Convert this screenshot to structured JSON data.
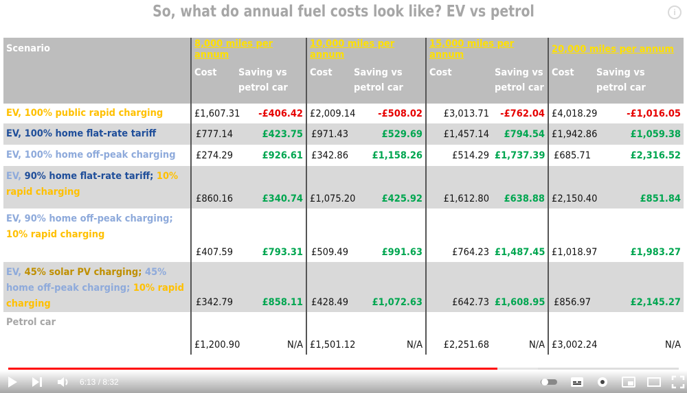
{
  "title": "So, what do annual fuel costs look like? EV vs petrol",
  "table": {
    "scenario_header": "Scenario",
    "groups": [
      "8,000 miles per annum",
      "10,000 miles per annum",
      "15,000 miles per annum",
      "20,000 miles per annum"
    ],
    "cost_label": "Cost",
    "saving_label_line1": "Saving vs",
    "saving_label_line2": "petrol car",
    "rows": [
      {
        "scenario": [
          {
            "text": "EV, 100% public rapid charging",
            "color": "rapid"
          }
        ],
        "values": [
          "£1,607.31",
          "-£406.42",
          "£2,009.14",
          "-£508.02",
          "£3,013.71",
          "-£762.04",
          "£4,018.29",
          "-£1,016.05"
        ]
      },
      {
        "scenario": [
          {
            "text": "EV, 100% home flat-rate tariff",
            "color": "flat"
          }
        ],
        "values": [
          "£777.14",
          "£423.75",
          "£971.43",
          "£529.69",
          "£1,457.14",
          "£794.54",
          "£1,942.86",
          "£1,059.38"
        ]
      },
      {
        "scenario": [
          {
            "text": "EV, 100% home off-peak charging",
            "color": "off"
          }
        ],
        "values": [
          "£274.29",
          "£926.61",
          "£342.86",
          "£1,158.26",
          "£514.29",
          "£1,737.39",
          "£685.71",
          "£2,316.52"
        ]
      },
      {
        "scenario": [
          {
            "text": "EV, ",
            "color": "ev"
          },
          {
            "text": "90% home flat-rate tariff; ",
            "color": "flat"
          },
          {
            "text": "10% rapid charging",
            "color": "rapid"
          }
        ],
        "values": [
          "£860.16",
          "£340.74",
          "£1,075.20",
          "£425.92",
          "£1,612.80",
          "£638.88",
          "£2,150.40",
          "£851.84"
        ]
      },
      {
        "scenario": [
          {
            "text": "EV, 90% home off-peak charging; ",
            "color": "off"
          },
          {
            "text": "10% rapid charging",
            "color": "rapid"
          }
        ],
        "values": [
          "£407.59",
          "£793.31",
          "£509.49",
          "£991.63",
          "£764.23",
          "£1,487.45",
          "£1,018.97",
          "£1,983.27"
        ]
      },
      {
        "scenario": [
          {
            "text": "EV, ",
            "color": "ev"
          },
          {
            "text": "45% solar PV charging; ",
            "color": "solar"
          },
          {
            "text": "45% home off-peak charging; ",
            "color": "off"
          },
          {
            "text": "10% rapid charging",
            "color": "rapid"
          }
        ],
        "values": [
          "£342.79",
          "£858.11",
          "£428.49",
          "£1,072.63",
          "£642.73",
          "£1,608.95",
          "£856.97",
          "£2,145.27"
        ]
      },
      {
        "scenario": [
          {
            "text": "Petrol car",
            "color": "petrol"
          }
        ],
        "values": [
          "£1,200.90",
          "N/A",
          "£1,501.12",
          "N/A",
          "£2,251.68",
          "N/A",
          "£3,002.24",
          "N/A"
        ]
      }
    ]
  },
  "player": {
    "time_display": "6:13 / 8:32",
    "progress": 0.729,
    "buffered": 0.79,
    "icons": [
      "play-icon",
      "next-icon",
      "volume-icon",
      "autoplay-toggle-icon",
      "subtitles-icon",
      "settings-icon",
      "miniplayer-icon",
      "theater-icon",
      "fullscreen-icon"
    ]
  }
}
